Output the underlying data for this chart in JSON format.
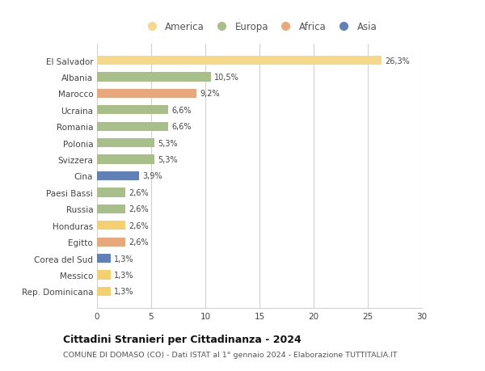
{
  "categories": [
    "Rep. Dominicana",
    "Messico",
    "Corea del Sud",
    "Egitto",
    "Honduras",
    "Russia",
    "Paesi Bassi",
    "Cina",
    "Svizzera",
    "Polonia",
    "Romania",
    "Ucraina",
    "Marocco",
    "Albania",
    "El Salvador"
  ],
  "values": [
    1.3,
    1.3,
    1.3,
    2.6,
    2.6,
    2.6,
    2.6,
    3.9,
    5.3,
    5.3,
    6.6,
    6.6,
    9.2,
    10.5,
    26.3
  ],
  "labels": [
    "1,3%",
    "1,3%",
    "1,3%",
    "2,6%",
    "2,6%",
    "2,6%",
    "2,6%",
    "3,9%",
    "5,3%",
    "5,3%",
    "6,6%",
    "6,6%",
    "9,2%",
    "10,5%",
    "26,3%"
  ],
  "colors": [
    "#f5d070",
    "#f5d070",
    "#6080b8",
    "#e8a87c",
    "#f5d070",
    "#a8bf8a",
    "#a8bf8a",
    "#6080b8",
    "#a8bf8a",
    "#a8bf8a",
    "#a8bf8a",
    "#a8bf8a",
    "#e8a87c",
    "#a8bf8a",
    "#f5d888"
  ],
  "legend_labels": [
    "America",
    "Europa",
    "Africa",
    "Asia"
  ],
  "legend_colors": [
    "#f5d888",
    "#a8bf8a",
    "#e8a87c",
    "#6080b8"
  ],
  "title": "Cittadini Stranieri per Cittadinanza - 2024",
  "subtitle": "COMUNE DI DOMASO (CO) - Dati ISTAT al 1° gennaio 2024 - Elaborazione TUTTITALIA.IT",
  "xlim": [
    0,
    30
  ],
  "xticks": [
    0,
    5,
    10,
    15,
    20,
    25,
    30
  ],
  "background_color": "#ffffff",
  "bar_height": 0.55,
  "grid_color": "#d0d0d0"
}
